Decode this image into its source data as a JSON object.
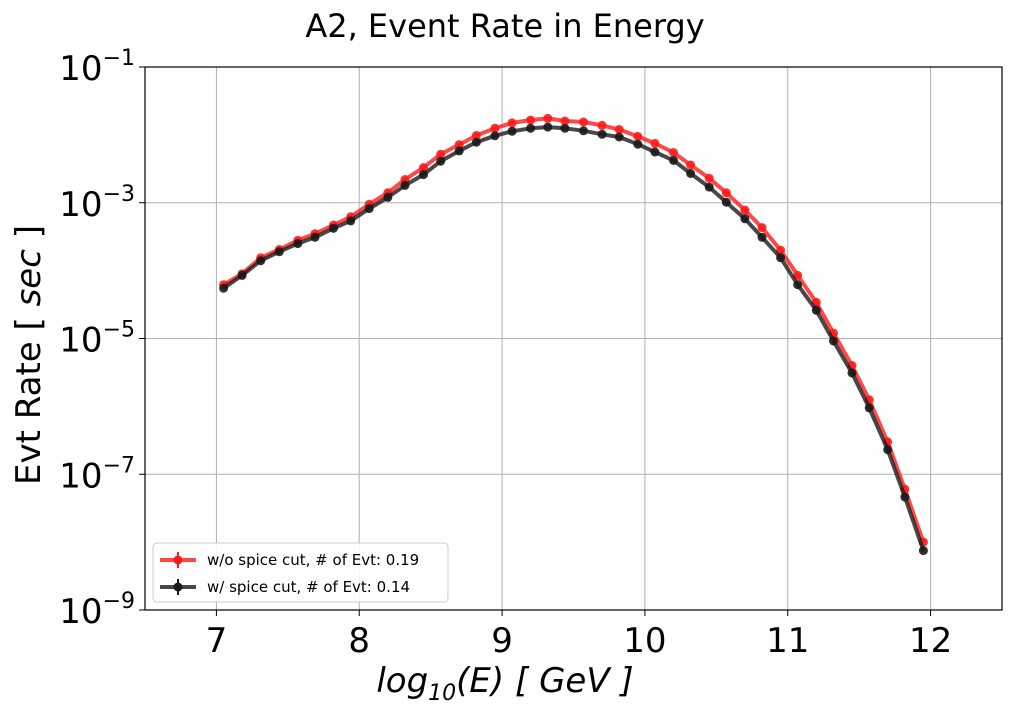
{
  "chart_data": {
    "type": "line",
    "title": "A2, Event Rate in Energy",
    "xlabel": "log10(E) [ GeV ]",
    "ylabel": "Evt Rate [ sec ]",
    "xlim": [
      6.5,
      12.5
    ],
    "ylim": [
      1e-09,
      0.1
    ],
    "yscale": "log",
    "grid": true,
    "legend_position": "lower-left",
    "x_ticks": [
      "7",
      "8",
      "9",
      "10",
      "11",
      "12"
    ],
    "y_ticks": [
      "10^-1",
      "10^-3",
      "10^-5",
      "10^-7",
      "10^-9"
    ],
    "x": [
      7.05,
      7.18,
      7.31,
      7.44,
      7.57,
      7.69,
      7.82,
      7.94,
      8.07,
      8.2,
      8.32,
      8.45,
      8.57,
      8.7,
      8.82,
      8.95,
      9.07,
      9.2,
      9.32,
      9.44,
      9.57,
      9.7,
      9.82,
      9.95,
      10.07,
      10.2,
      10.32,
      10.45,
      10.57,
      10.7,
      10.82,
      10.95,
      11.07,
      11.2,
      11.32,
      11.45,
      11.57,
      11.7,
      11.82,
      11.95
    ],
    "series": [
      {
        "name": "w/o spice cut, # of Evt: 0.19",
        "color": "#ff1a1a",
        "values": [
          6.2e-05,
          9e-05,
          0.000155,
          0.000205,
          0.00028,
          0.00035,
          0.00047,
          0.00062,
          0.00095,
          0.0014,
          0.0022,
          0.0033,
          0.0052,
          0.0072,
          0.0098,
          0.0125,
          0.015,
          0.0165,
          0.0175,
          0.016,
          0.0155,
          0.0138,
          0.012,
          0.0095,
          0.0075,
          0.0055,
          0.0036,
          0.0023,
          0.0014,
          0.00078,
          0.00043,
          0.0002,
          8.5e-05,
          3.4e-05,
          1.2e-05,
          4e-06,
          1.25e-06,
          3e-07,
          6e-08,
          1e-08
        ]
      },
      {
        "name": "w/ spice cut, # of Evt: 0.14",
        "color": "#1a1a1a",
        "values": [
          5.5e-05,
          8.5e-05,
          0.00014,
          0.00019,
          0.00025,
          0.00031,
          0.00042,
          0.00054,
          0.00082,
          0.0012,
          0.0018,
          0.0026,
          0.0041,
          0.0058,
          0.0078,
          0.0097,
          0.0113,
          0.0125,
          0.013,
          0.0125,
          0.0115,
          0.0102,
          0.0093,
          0.0073,
          0.0056,
          0.0042,
          0.0027,
          0.0017,
          0.00102,
          0.00058,
          0.00031,
          0.000155,
          6.2e-05,
          2.6e-05,
          9.2e-06,
          3.1e-06,
          9.5e-07,
          2.3e-07,
          4.6e-08,
          7.5e-09
        ]
      }
    ]
  }
}
